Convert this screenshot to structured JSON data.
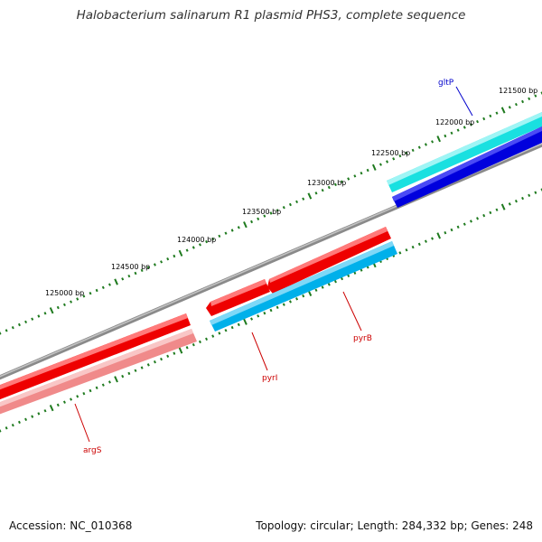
{
  "title": "Halobacterium salinarum R1 plasmid PHS3, complete sequence",
  "footer": {
    "accession": "Accession: NC_010368",
    "topology": "Topology: circular; Length: 284,332 bp; Genes: 248"
  },
  "colors": {
    "backbone": "#8a8a8a",
    "ticks": "#1e7a1e",
    "forward_gene": "#ee0000",
    "forward_gene_light": "#f08a8a",
    "reverse_gene": "#00b0ea",
    "cyan_gene": "#19e0e0",
    "blue_gene": "#0000dd",
    "label_red": "#cc0000",
    "label_blue": "#0000cc"
  },
  "bp_labels": [
    "121500 bp",
    "122000 bp",
    "122500 bp",
    "123000 bp",
    "123500 bp",
    "124000 bp",
    "124500 bp",
    "125000 bp"
  ],
  "genes": [
    {
      "name": "gltP",
      "color": "label_blue"
    },
    {
      "name": "pyrB",
      "color": "label_red"
    },
    {
      "name": "pyrI",
      "color": "label_red"
    },
    {
      "name": "argS",
      "color": "label_red"
    }
  ]
}
